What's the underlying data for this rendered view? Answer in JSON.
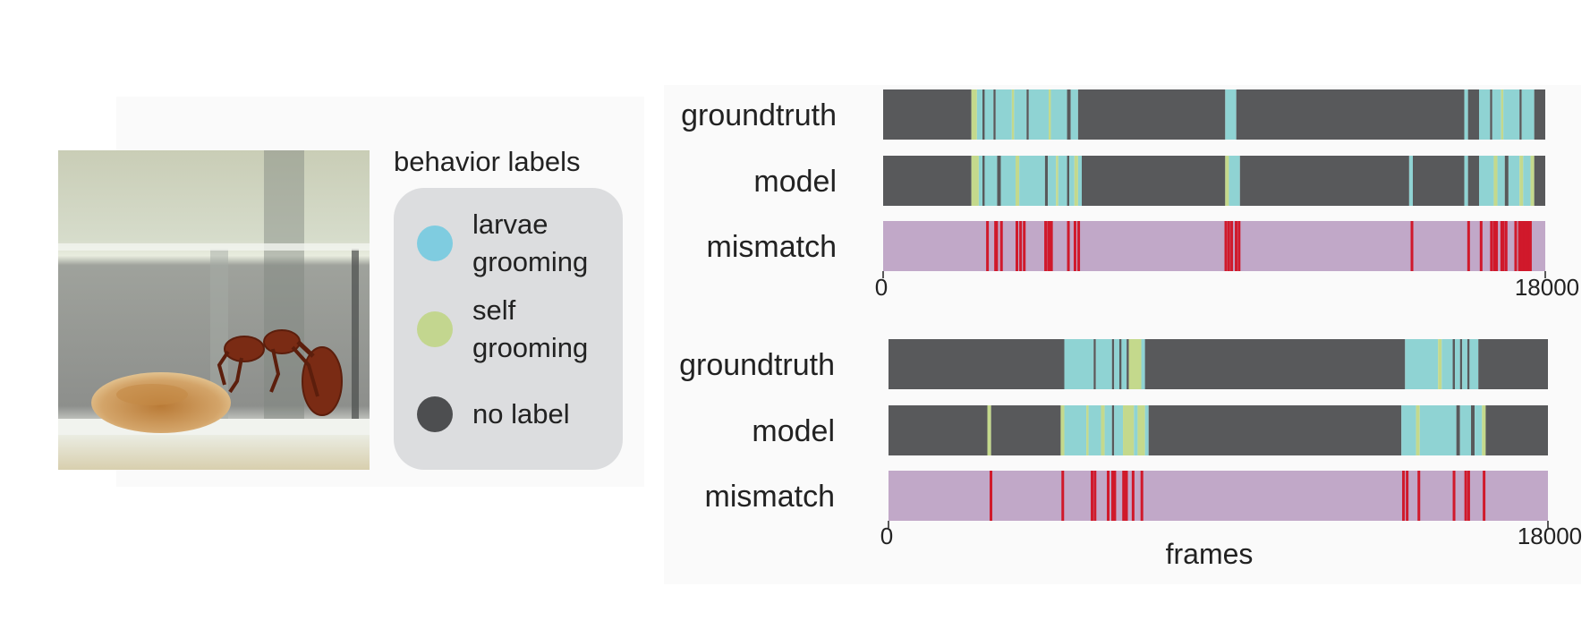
{
  "legend": {
    "title": "behavior labels",
    "items": [
      {
        "label": "larvae grooming",
        "color": "#7fcce0"
      },
      {
        "label": "self grooming",
        "color": "#c3d68f"
      },
      {
        "label": "no label",
        "color": "#4d4e50"
      }
    ]
  },
  "colors": {
    "no_label": "#58595b",
    "larvae_grooming": "#8fd3d3",
    "self_grooming": "#c4d98c",
    "mismatch_bg": "#c1a8c8",
    "mismatch_mark": "#d0192b"
  },
  "chart_data": [
    {
      "type": "heatmap",
      "rows": [
        "groundtruth",
        "model",
        "mismatch"
      ],
      "xlim": [
        0,
        18000
      ],
      "tick_labels": [
        "0",
        "18000"
      ],
      "xlabel": "",
      "groundtruth": [
        [
          0,
          2400,
          "none"
        ],
        [
          2400,
          2550,
          "self"
        ],
        [
          2550,
          2700,
          "larvae"
        ],
        [
          2700,
          2760,
          "none"
        ],
        [
          2760,
          3000,
          "larvae"
        ],
        [
          3000,
          3060,
          "none"
        ],
        [
          3060,
          3500,
          "larvae"
        ],
        [
          3500,
          3560,
          "self"
        ],
        [
          3560,
          3900,
          "larvae"
        ],
        [
          3900,
          3960,
          "none"
        ],
        [
          3960,
          4500,
          "larvae"
        ],
        [
          4500,
          4560,
          "self"
        ],
        [
          4560,
          5000,
          "larvae"
        ],
        [
          5000,
          5100,
          "none"
        ],
        [
          5100,
          5300,
          "larvae"
        ],
        [
          5300,
          9300,
          "none"
        ],
        [
          9300,
          9600,
          "larvae"
        ],
        [
          9600,
          15800,
          "none"
        ],
        [
          15800,
          15900,
          "larvae"
        ],
        [
          15900,
          16200,
          "none"
        ],
        [
          16200,
          16500,
          "larvae"
        ],
        [
          16500,
          16560,
          "none"
        ],
        [
          16560,
          16800,
          "larvae"
        ],
        [
          16800,
          16860,
          "self"
        ],
        [
          16860,
          17300,
          "larvae"
        ],
        [
          17300,
          17360,
          "none"
        ],
        [
          17360,
          17700,
          "larvae"
        ],
        [
          17700,
          18000,
          "none"
        ]
      ],
      "model": [
        [
          0,
          2400,
          "none"
        ],
        [
          2400,
          2600,
          "self"
        ],
        [
          2600,
          2700,
          "larvae"
        ],
        [
          2700,
          2760,
          "none"
        ],
        [
          2760,
          3100,
          "larvae"
        ],
        [
          3100,
          3200,
          "none"
        ],
        [
          3200,
          3600,
          "larvae"
        ],
        [
          3600,
          3700,
          "self"
        ],
        [
          3700,
          4400,
          "larvae"
        ],
        [
          4400,
          4480,
          "none"
        ],
        [
          4480,
          4700,
          "larvae"
        ],
        [
          4700,
          4760,
          "self"
        ],
        [
          4760,
          5000,
          "larvae"
        ],
        [
          5000,
          5060,
          "none"
        ],
        [
          5060,
          5200,
          "larvae"
        ],
        [
          5200,
          5300,
          "self"
        ],
        [
          5300,
          5400,
          "larvae"
        ],
        [
          5400,
          9300,
          "none"
        ],
        [
          9300,
          9400,
          "self"
        ],
        [
          9400,
          9700,
          "larvae"
        ],
        [
          9700,
          14300,
          "none"
        ],
        [
          14300,
          14400,
          "larvae"
        ],
        [
          14400,
          15800,
          "none"
        ],
        [
          15800,
          15900,
          "larvae"
        ],
        [
          15900,
          16200,
          "none"
        ],
        [
          16200,
          16600,
          "larvae"
        ],
        [
          16600,
          16700,
          "self"
        ],
        [
          16700,
          16900,
          "larvae"
        ],
        [
          16900,
          17000,
          "none"
        ],
        [
          17000,
          17300,
          "larvae"
        ],
        [
          17300,
          17400,
          "self"
        ],
        [
          17400,
          17600,
          "larvae"
        ],
        [
          17600,
          17700,
          "self"
        ],
        [
          17700,
          18000,
          "none"
        ]
      ],
      "mismatch": [
        2800,
        3020,
        3050,
        3180,
        3600,
        3700,
        3800,
        4380,
        4460,
        4500,
        4540,
        5000,
        5180,
        5280,
        9280,
        9360,
        9440,
        9560,
        9640,
        14340,
        15880,
        16220,
        16500,
        16580,
        16640,
        16780,
        16820,
        16900,
        17160,
        17260,
        17300,
        17340,
        17400,
        17440,
        17480,
        17520,
        17560
      ]
    },
    {
      "type": "heatmap",
      "rows": [
        "groundtruth",
        "model",
        "mismatch"
      ],
      "xlim": [
        0,
        18000
      ],
      "tick_labels": [
        "0",
        "18000"
      ],
      "xlabel": "frames",
      "groundtruth": [
        [
          0,
          4800,
          "none"
        ],
        [
          4800,
          5600,
          "larvae"
        ],
        [
          5600,
          5660,
          "none"
        ],
        [
          5660,
          6100,
          "larvae"
        ],
        [
          6100,
          6160,
          "none"
        ],
        [
          6160,
          6300,
          "larvae"
        ],
        [
          6300,
          6360,
          "none"
        ],
        [
          6360,
          6500,
          "larvae"
        ],
        [
          6500,
          6560,
          "none"
        ],
        [
          6560,
          6900,
          "self"
        ],
        [
          6900,
          7000,
          "larvae"
        ],
        [
          7000,
          14100,
          "none"
        ],
        [
          14100,
          15000,
          "larvae"
        ],
        [
          15000,
          15100,
          "self"
        ],
        [
          15100,
          15400,
          "larvae"
        ],
        [
          15400,
          15460,
          "none"
        ],
        [
          15460,
          15600,
          "larvae"
        ],
        [
          15600,
          15660,
          "none"
        ],
        [
          15660,
          15800,
          "larvae"
        ],
        [
          15800,
          15860,
          "none"
        ],
        [
          15860,
          16100,
          "larvae"
        ],
        [
          16100,
          18000,
          "none"
        ]
      ],
      "model": [
        [
          0,
          2700,
          "none"
        ],
        [
          2700,
          2800,
          "self"
        ],
        [
          2800,
          4700,
          "none"
        ],
        [
          4700,
          4800,
          "self"
        ],
        [
          4800,
          5400,
          "larvae"
        ],
        [
          5400,
          5460,
          "self"
        ],
        [
          5460,
          5800,
          "larvae"
        ],
        [
          5800,
          5900,
          "self"
        ],
        [
          5900,
          6100,
          "larvae"
        ],
        [
          6100,
          6160,
          "none"
        ],
        [
          6160,
          6400,
          "larvae"
        ],
        [
          6400,
          6700,
          "self"
        ],
        [
          6700,
          6800,
          "larvae"
        ],
        [
          6800,
          7000,
          "self"
        ],
        [
          7000,
          7100,
          "larvae"
        ],
        [
          7100,
          14000,
          "none"
        ],
        [
          14000,
          14400,
          "larvae"
        ],
        [
          14400,
          14500,
          "self"
        ],
        [
          14500,
          15500,
          "larvae"
        ],
        [
          15500,
          15600,
          "none"
        ],
        [
          15600,
          15900,
          "larvae"
        ],
        [
          15900,
          16000,
          "none"
        ],
        [
          16000,
          16200,
          "larvae"
        ],
        [
          16200,
          16300,
          "self"
        ],
        [
          16300,
          18000,
          "none"
        ]
      ],
      "mismatch": [
        2760,
        4720,
        5520,
        5600,
        5960,
        6080,
        6140,
        6380,
        6420,
        6460,
        6640,
        6880,
        14020,
        14120,
        14440,
        15400,
        15720,
        15800,
        16220
      ]
    }
  ]
}
